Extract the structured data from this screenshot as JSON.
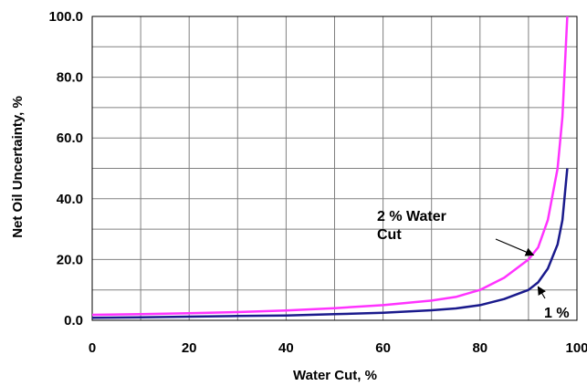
{
  "chart_data": {
    "type": "line",
    "xlabel": "Water Cut, %",
    "ylabel": "Net Oil Uncertainty, %",
    "xlim": [
      0,
      100
    ],
    "ylim": [
      0,
      100
    ],
    "x_ticks": [
      "0",
      "20",
      "40",
      "60",
      "80",
      "100"
    ],
    "y_ticks": [
      "0.0",
      "20.0",
      "40.0",
      "60.0",
      "80.0",
      "100.0"
    ],
    "grid": true,
    "series": [
      {
        "name": "2 % Water Cut",
        "color": "#ff33ff",
        "points": [
          [
            0,
            1.8
          ],
          [
            10,
            2.0
          ],
          [
            20,
            2.3
          ],
          [
            30,
            2.7
          ],
          [
            40,
            3.2
          ],
          [
            50,
            4.0
          ],
          [
            60,
            5.0
          ],
          [
            70,
            6.5
          ],
          [
            75,
            7.7
          ],
          [
            80,
            10.0
          ],
          [
            85,
            14.0
          ],
          [
            90,
            20.0
          ],
          [
            92,
            24.0
          ],
          [
            94,
            33.0
          ],
          [
            96,
            50.0
          ],
          [
            97,
            67.0
          ],
          [
            98,
            100.0
          ]
        ]
      },
      {
        "name": "1 %",
        "color": "#1a1a8c",
        "points": [
          [
            0,
            0.8
          ],
          [
            10,
            1.0
          ],
          [
            20,
            1.2
          ],
          [
            30,
            1.4
          ],
          [
            40,
            1.6
          ],
          [
            50,
            2.0
          ],
          [
            60,
            2.5
          ],
          [
            70,
            3.3
          ],
          [
            75,
            3.9
          ],
          [
            80,
            5.0
          ],
          [
            85,
            7.0
          ],
          [
            90,
            10.0
          ],
          [
            92,
            12.5
          ],
          [
            94,
            17.0
          ],
          [
            96,
            25.0
          ],
          [
            97,
            33.0
          ],
          [
            98,
            50.0
          ]
        ]
      }
    ],
    "annotations": [
      {
        "lines": [
          "2 % Water",
          "Cut"
        ],
        "series": 0,
        "target": [
          91,
          21.5
        ]
      },
      {
        "lines": [
          "1 %"
        ],
        "series": 1,
        "target": [
          92,
          11.0
        ]
      }
    ]
  }
}
